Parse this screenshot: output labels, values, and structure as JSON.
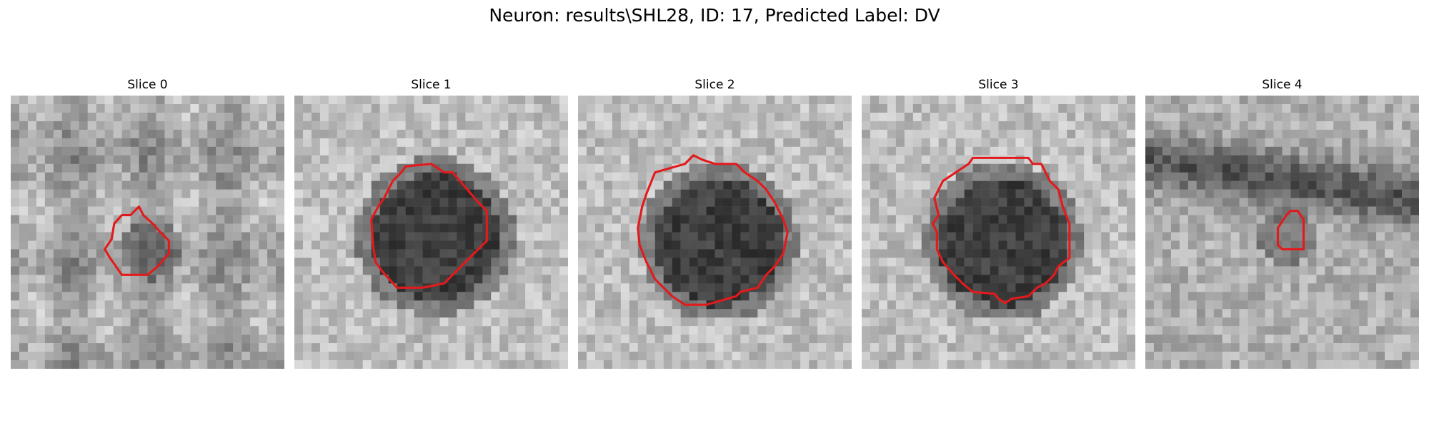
{
  "figure": {
    "title": "Neuron: results\\SHL28, ID: 17, Predicted Label: DV"
  },
  "panels": [
    {
      "title": "Slice 0",
      "cell": "weak",
      "cy": 0.55,
      "bg": "mottled"
    },
    {
      "title": "Slice 1",
      "cell": "strong",
      "cy": 0.5,
      "bg": "light"
    },
    {
      "title": "Slice 2",
      "cell": "strong",
      "cy": 0.52,
      "bg": "light"
    },
    {
      "title": "Slice 3",
      "cell": "strong",
      "cy": 0.52,
      "bg": "light"
    },
    {
      "title": "Slice 4",
      "cell": "weak",
      "cy": 0.5,
      "bg": "banded"
    }
  ],
  "colors": {
    "contour": "#e31a1c"
  }
}
